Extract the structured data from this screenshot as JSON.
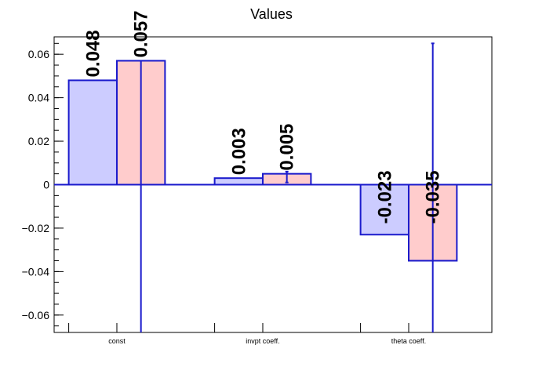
{
  "chart_data": {
    "type": "bar",
    "title": "Values",
    "xlabel": "",
    "ylabel": "",
    "categories": [
      "const",
      "invpt coeff.",
      "theta coeff."
    ],
    "ylim": [
      -0.068,
      0.068
    ],
    "yticks": [
      0.06,
      0.04,
      0.02,
      0,
      -0.02,
      -0.04,
      -0.06
    ],
    "ytick_labels": [
      "0.06",
      "0.04",
      "0.02",
      "0",
      "−0.02",
      "−0.04",
      "−0.06"
    ],
    "grid": false,
    "legend": "none",
    "series": [
      {
        "values": [
          0.048,
          0.003,
          -0.023
        ],
        "labels": [
          "0.048",
          "0.003",
          "-0.023"
        ],
        "fill": "#ccccff",
        "stroke": "#1a1acc",
        "errors": [
          null,
          null,
          null
        ]
      },
      {
        "values": [
          0.057,
          0.005,
          -0.035
        ],
        "labels": [
          "0.057",
          "0.005",
          "-0.035"
        ],
        "fill": "#ffcccc",
        "stroke": "#1a1acc",
        "errors": [
          [
            -0.068,
            0.057
          ],
          [
            0.001,
            0.006
          ],
          [
            -0.068,
            0.065
          ]
        ]
      }
    ],
    "colors": {
      "axis": "#000000",
      "error_bar": "#1a1acc",
      "zero_line": "#1a1acc"
    }
  }
}
